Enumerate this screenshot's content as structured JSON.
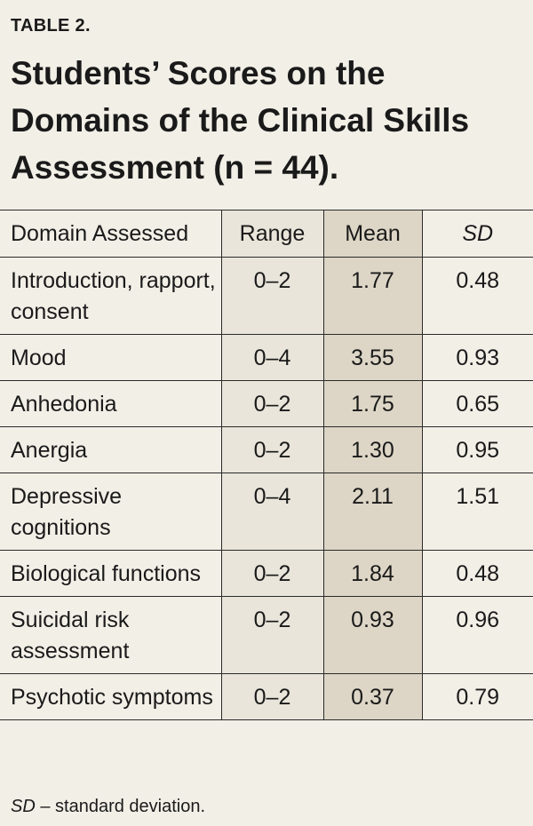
{
  "label": "TABLE 2.",
  "title": "Students’ Scores on the Domains of the Clinical Skills Assessment (n = 44).",
  "headers": {
    "domain": "Domain Assessed",
    "range": "Range",
    "mean": "Mean",
    "sd": "SD"
  },
  "rows": [
    {
      "domain": "Introduction, rapport, consent",
      "range": "0–2",
      "mean": "1.77",
      "sd": "0.48"
    },
    {
      "domain": "Mood",
      "range": "0–4",
      "mean": "3.55",
      "sd": "0.93"
    },
    {
      "domain": "Anhedonia",
      "range": "0–2",
      "mean": "1.75",
      "sd": "0.65"
    },
    {
      "domain": "Anergia",
      "range": "0–2",
      "mean": "1.30",
      "sd": "0.95"
    },
    {
      "domain": "Depressive cognitions",
      "range": "0–4",
      "mean": "2.11",
      "sd": "1.51"
    },
    {
      "domain": "Biological functions",
      "range": "0–2",
      "mean": "1.84",
      "sd": "0.48"
    },
    {
      "domain": "Suicidal risk assessment",
      "range": "0–2",
      "mean": "0.93",
      "sd": "0.96"
    },
    {
      "domain": "Psychotic symptoms",
      "range": "0–2",
      "mean": "0.37",
      "sd": "0.79"
    }
  ],
  "footnote": {
    "abbr": "SD",
    "text": " – standard deviation."
  }
}
